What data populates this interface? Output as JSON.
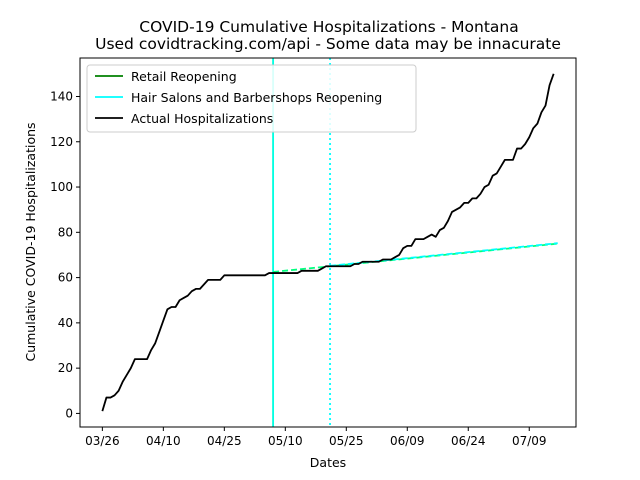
{
  "chart_data": {
    "type": "line",
    "title": "COVID-19 Cumulative Hospitalizations - Montana",
    "subtitle": "Used covidtracking.com/api - Some data may be innacurate",
    "xlabel": "Dates",
    "ylabel": "Cumulative COVID-19 Hospitalizations",
    "x_tick_labels": [
      "03/26",
      "04/10",
      "04/25",
      "05/10",
      "05/25",
      "06/09",
      "06/24",
      "07/09"
    ],
    "y_ticks": [
      0,
      20,
      40,
      60,
      80,
      100,
      120,
      140
    ],
    "ylim": [
      -6,
      157
    ],
    "x_start_date": "2020-03-26",
    "legend_position": "top-left",
    "legend": [
      "Retail Reopening",
      "Hair Salons and Barbershops Reopening",
      "Actual Hospitalizations"
    ],
    "events": [
      {
        "name": "Retail Reopening",
        "date": "05/07",
        "line_style": "solid",
        "color": "#00ff7f"
      },
      {
        "name": "Hair Salons and Barbershops Reopening",
        "date": "05/21",
        "line_style": "dotted",
        "color": "#00ffff"
      }
    ],
    "series": [
      {
        "name": "Actual Hospitalizations",
        "color": "#000000",
        "x_start": "03/26",
        "values": [
          1,
          7,
          7,
          8,
          10,
          14,
          17,
          20,
          24,
          24,
          24,
          24,
          28,
          31,
          36,
          41,
          46,
          47,
          47,
          50,
          51,
          52,
          54,
          55,
          55,
          57,
          59,
          59,
          59,
          59,
          61,
          61,
          61,
          61,
          61,
          61,
          61,
          61,
          61,
          61,
          61,
          62,
          62,
          62,
          62,
          62,
          62,
          62,
          62,
          63,
          63,
          63,
          63,
          63,
          64,
          65,
          65,
          65,
          65,
          65,
          65,
          65,
          66,
          66,
          67,
          67,
          67,
          67,
          67,
          68,
          68,
          68,
          69,
          70,
          73,
          74,
          74,
          77,
          77,
          77,
          78,
          79,
          78,
          81,
          82,
          85,
          89,
          90,
          91,
          93,
          93,
          95,
          95,
          97,
          100,
          101,
          105,
          106,
          109,
          112,
          112,
          112,
          117,
          117,
          119,
          122,
          126,
          128,
          133,
          136,
          145,
          150
        ]
      },
      {
        "name": "Retail Reopening",
        "line_style": "dashed",
        "color": "#00ff7f",
        "x": [
          "05/07",
          "07/16"
        ],
        "values": [
          62.5,
          75
        ]
      },
      {
        "name": "Hair Salons and Barbershops Reopening",
        "line_style": "dashed",
        "color": "#00ffff",
        "x": [
          "05/21",
          "07/16"
        ],
        "values": [
          65.2,
          75.2
        ]
      }
    ]
  }
}
